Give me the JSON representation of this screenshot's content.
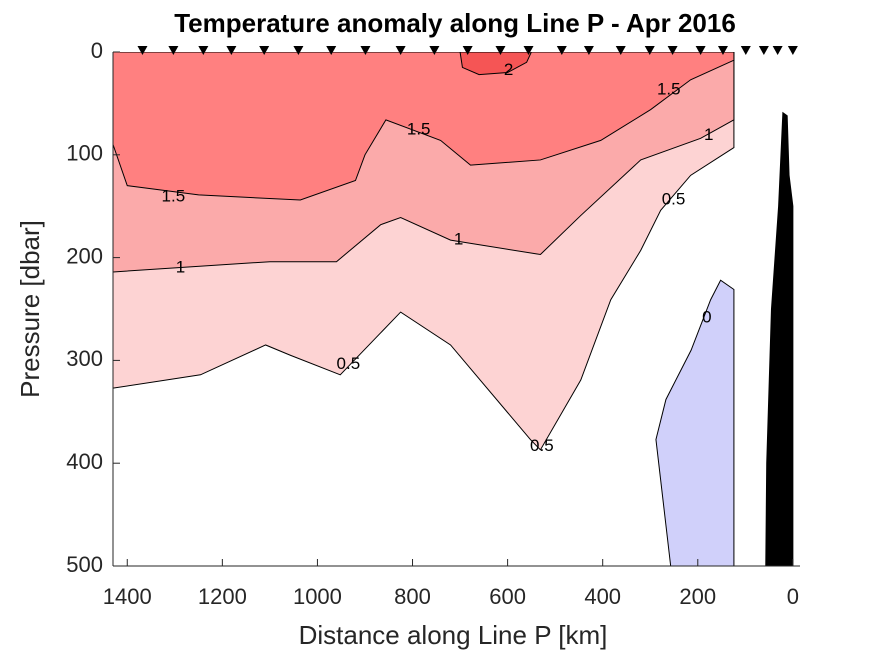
{
  "chart_data": {
    "type": "contour",
    "title": "Temperature anomaly along Line P - Apr 2016",
    "xlabel": "Distance along Line P [km]",
    "ylabel": "Pressure [dbar]",
    "xlim": [
      1430,
      -15
    ],
    "ylim": [
      0,
      500
    ],
    "xticks": [
      1400,
      1200,
      1000,
      800,
      600,
      400,
      200,
      0
    ],
    "yticks": [
      0,
      100,
      200,
      300,
      400,
      500
    ],
    "regions": [
      {
        "color": "#fdd3d3",
        "x": [
          1430,
          1246,
          1109,
          1057,
          952,
          825,
          720,
          552,
          531,
          446,
          383,
          320,
          278,
          215,
          124,
          124,
          1430
        ],
        "y": [
          327,
          314,
          285,
          295,
          314,
          253,
          285,
          377,
          387,
          319,
          241,
          193,
          154,
          120,
          93,
          0,
          0
        ]
      },
      {
        "color": "#fbaaaa",
        "x": [
          1430,
          1300,
          1100,
          960,
          867,
          825,
          720,
          531,
          446,
          320,
          194,
          124,
          124,
          1430
        ],
        "y": [
          214,
          210,
          204,
          204,
          168,
          161,
          183,
          197,
          159,
          105,
          84,
          66,
          0,
          0
        ]
      },
      {
        "color": "#ff8080",
        "x": [
          1430,
          1400,
          1250,
          1036,
          920,
          900,
          856,
          741,
          678,
          531,
          404,
          299,
          215,
          124,
          124,
          1430
        ],
        "y": [
          90,
          130,
          139,
          144,
          125,
          100,
          66,
          86,
          110,
          105,
          86,
          56,
          27,
          8,
          0,
          0
        ]
      },
      {
        "color": "#f55555",
        "x": [
          700,
          695,
          660,
          600,
          560,
          550
        ],
        "y": [
          0,
          15,
          22,
          20,
          10,
          0
        ]
      },
      {
        "color": "#d0d0fa",
        "x": [
          257,
          288,
          267,
          214,
          173,
          152,
          124,
          124
        ],
        "y": [
          500,
          377,
          338,
          290,
          241,
          222,
          231,
          500
        ]
      },
      {
        "color": "#000000",
        "x": [
          57,
          55,
          45,
          30,
          21,
          12,
          8,
          0,
          0
        ],
        "y": [
          500,
          400,
          250,
          150,
          59,
          62,
          120,
          150,
          500
        ]
      }
    ],
    "contour_labels": [
      {
        "level": 2,
        "x": 598,
        "y": 18
      },
      {
        "level": 1.5,
        "x": 261,
        "y": 37
      },
      {
        "level": 1,
        "x": 177,
        "y": 81
      },
      {
        "level": 1.5,
        "x": 787,
        "y": 76
      },
      {
        "level": 1.5,
        "x": 1303,
        "y": 141
      },
      {
        "level": 1,
        "x": 703,
        "y": 183
      },
      {
        "level": 1,
        "x": 1288,
        "y": 210
      },
      {
        "level": 0.5,
        "x": 251,
        "y": 144
      },
      {
        "level": 0.5,
        "x": 935,
        "y": 304
      },
      {
        "level": 0.5,
        "x": 528,
        "y": 384
      },
      {
        "level": 0,
        "x": 181,
        "y": 259
      }
    ],
    "stations": [
      1368,
      1303,
      1240,
      1181,
      1112,
      1040,
      971,
      899,
      825,
      754,
      684,
      615,
      556,
      486,
      429,
      362,
      301,
      253,
      194,
      147,
      99,
      61,
      32,
      0
    ]
  }
}
